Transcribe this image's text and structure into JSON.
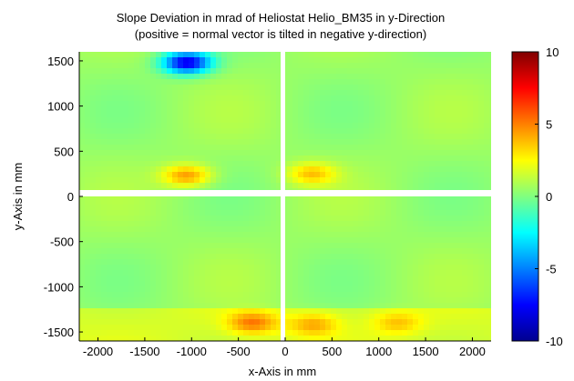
{
  "chart_data": {
    "type": "heatmap",
    "title": "Slope Deviation in mrad of Heliostat Helio_BM35 in y-Direction",
    "subtitle": "(positive = normal vector is tilted in negative y-direction)",
    "xlabel": "x-Axis in mm",
    "ylabel": "y-Axis in mm",
    "xlim": [
      -2200,
      2200
    ],
    "ylim": [
      -1600,
      1600
    ],
    "x_ticks": [
      -2000,
      -1500,
      -1000,
      -500,
      0,
      500,
      1000,
      1500,
      2000
    ],
    "y_ticks": [
      -1500,
      -1000,
      -500,
      0,
      500,
      1000,
      1500
    ],
    "colorbar": {
      "range": [
        -10,
        10
      ],
      "ticks": [
        -10,
        -5,
        0,
        5,
        10
      ],
      "colormap": "jet"
    },
    "background_level": 0.5,
    "features": [
      {
        "name": "top-left blue minimum",
        "x": -1050,
        "y": 1480,
        "value": -8
      },
      {
        "name": "upper-left orange hotspot",
        "x": -1050,
        "y": 230,
        "value": 4.5
      },
      {
        "name": "upper-right orange hotspot",
        "x": 280,
        "y": 250,
        "value": 3.5
      },
      {
        "name": "bottom orange hotspot",
        "x": -350,
        "y": -1400,
        "value": 4
      },
      {
        "name": "bottom-right orange hotspot",
        "x": 300,
        "y": -1420,
        "value": 3
      },
      {
        "name": "bottom-right minor hotspot",
        "x": 1200,
        "y": -1400,
        "value": 2.5
      }
    ]
  }
}
